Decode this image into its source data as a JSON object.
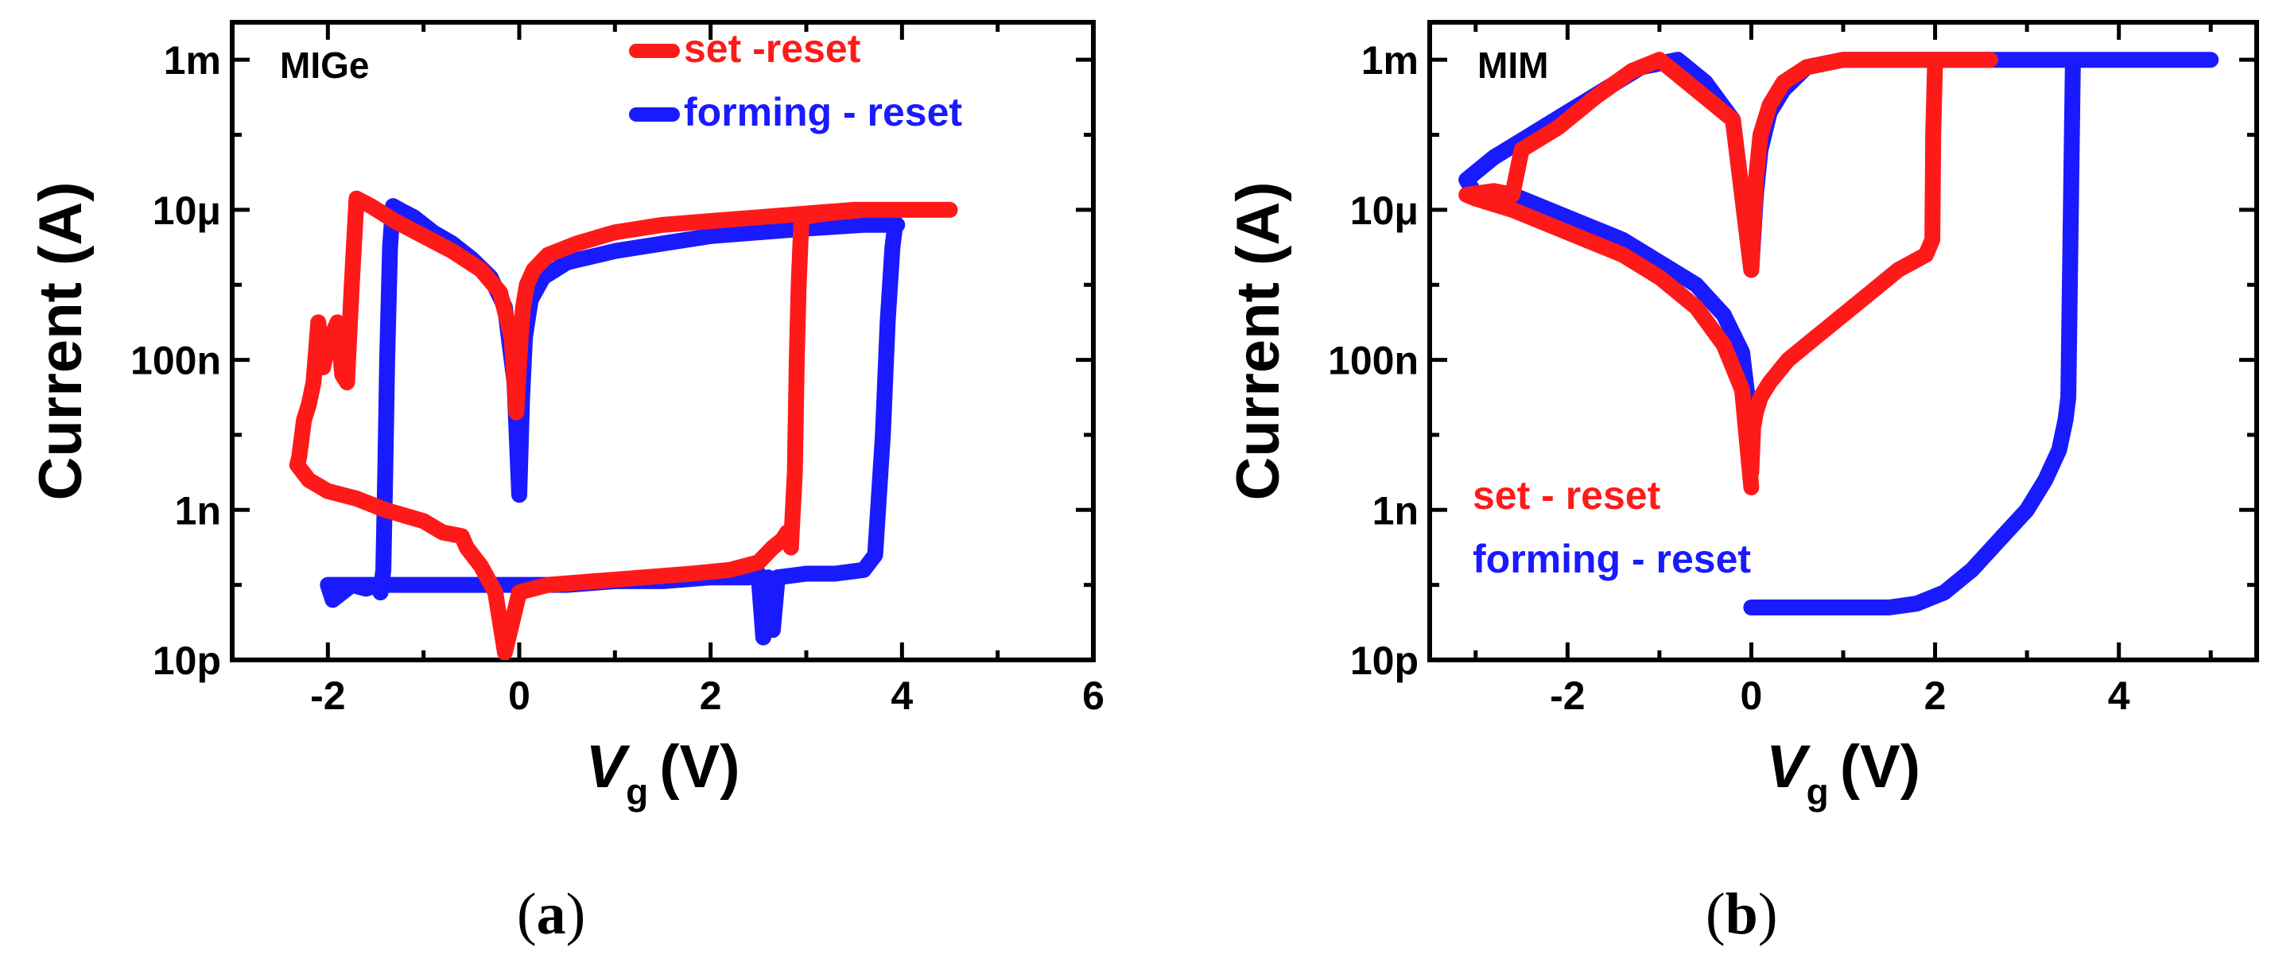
{
  "chart_data": [
    {
      "type": "line",
      "panel_label": "a",
      "annotation": "MIGe",
      "xlabel": "V",
      "xlabel_subscript": "g",
      "xlabel_unit": "(V)",
      "ylabel": "Current (A)",
      "yscale": "log",
      "xlim": [
        -3.0,
        6.0
      ],
      "ylim": [
        -11,
        -2.5
      ],
      "xticks": [
        -2,
        0,
        2,
        4,
        6
      ],
      "xtick_labels": [
        "-2",
        "0",
        "2",
        "4",
        "6"
      ],
      "yticks": [
        -11,
        -9,
        -7,
        -5,
        -3
      ],
      "ytick_labels": [
        "10p",
        "1n",
        "100n",
        "10μ",
        "1m"
      ],
      "legend_position": "top-right",
      "series": [
        {
          "name": "forming - reset",
          "color": "#1a1aff",
          "x": [
            0.05,
            0.5,
            1.0,
            1.5,
            2.0,
            2.4,
            2.5,
            2.55,
            2.6,
            2.65,
            2.7,
            3.0,
            3.3,
            3.6,
            3.72,
            3.8,
            3.85,
            3.9,
            3.93,
            3.95,
            3.6,
            3.0,
            2.5,
            2.0,
            1.5,
            1.0,
            0.5,
            0.25,
            0.12,
            0.06,
            0.03,
            0.0,
            -0.05,
            -0.15,
            -0.3,
            -0.5,
            -0.7,
            -0.9,
            -1.1,
            -1.25,
            -1.32,
            -1.35,
            -1.38,
            -1.4,
            -1.42,
            -1.45,
            -1.5,
            -1.6,
            -1.75,
            -1.85,
            -1.95,
            -2.0,
            -1.9,
            -1.6,
            -1.2,
            -0.8,
            -0.4,
            -0.1,
            0.0,
            0.03,
            0.05
          ],
          "log10_y": [
            -10.0,
            -10.0,
            -9.95,
            -9.95,
            -9.9,
            -9.9,
            -9.85,
            -10.7,
            -9.9,
            -10.6,
            -9.9,
            -9.85,
            -9.85,
            -9.8,
            -9.6,
            -8.0,
            -6.5,
            -5.5,
            -5.2,
            -5.2,
            -5.2,
            -5.25,
            -5.3,
            -5.35,
            -5.45,
            -5.55,
            -5.7,
            -5.9,
            -6.2,
            -6.7,
            -7.5,
            -8.8,
            -7.3,
            -6.3,
            -5.9,
            -5.65,
            -5.45,
            -5.3,
            -5.1,
            -5.0,
            -4.95,
            -5.5,
            -7.0,
            -8.5,
            -9.8,
            -10.1,
            -10.0,
            -10.05,
            -10.0,
            -10.1,
            -10.2,
            -10.0,
            -10.0,
            -10.0,
            -10.0,
            -10.0,
            -10.0,
            -10.0,
            -10.0,
            -10.0,
            -10.0
          ]
        },
        {
          "name": "set -reset",
          "color": "#ff1a1a",
          "x": [
            -0.15,
            0.0,
            0.3,
            0.8,
            1.3,
            1.8,
            2.2,
            2.5,
            2.65,
            2.75,
            2.8,
            2.84,
            2.88,
            2.9,
            2.92,
            2.95,
            3.2,
            3.6,
            4.0,
            4.5,
            4.0,
            3.5,
            3.0,
            2.5,
            2.0,
            1.5,
            1.0,
            0.6,
            0.3,
            0.15,
            0.08,
            0.04,
            0.02,
            0.0,
            -0.03,
            -0.08,
            -0.2,
            -0.4,
            -0.7,
            -1.0,
            -1.3,
            -1.55,
            -1.7,
            -1.75,
            -1.8,
            -1.85,
            -1.9,
            -2.0,
            -2.05,
            -2.1,
            -2.15,
            -2.2,
            -2.25,
            -2.3,
            -2.32,
            -2.2,
            -2.0,
            -1.7,
            -1.4,
            -1.0,
            -0.8,
            -0.6,
            -0.55,
            -0.4,
            -0.25,
            -0.15
          ],
          "log10_y": [
            -10.9,
            -10.1,
            -10.0,
            -9.95,
            -9.9,
            -9.85,
            -9.8,
            -9.7,
            -9.5,
            -9.4,
            -9.3,
            -9.5,
            -8.5,
            -7.0,
            -6.0,
            -5.1,
            -5.05,
            -5.0,
            -5.0,
            -5.0,
            -5.0,
            -5.0,
            -5.05,
            -5.1,
            -5.15,
            -5.2,
            -5.3,
            -5.45,
            -5.6,
            -5.8,
            -6.0,
            -6.3,
            -6.6,
            -7.0,
            -7.7,
            -6.7,
            -6.1,
            -5.8,
            -5.55,
            -5.35,
            -5.15,
            -4.95,
            -4.85,
            -6.0,
            -7.3,
            -7.2,
            -6.5,
            -6.8,
            -7.1,
            -6.5,
            -7.3,
            -7.6,
            -7.8,
            -8.3,
            -8.4,
            -8.6,
            -8.75,
            -8.85,
            -9.0,
            -9.15,
            -9.3,
            -9.35,
            -9.5,
            -9.75,
            -10.1,
            -10.9
          ]
        }
      ]
    },
    {
      "type": "line",
      "panel_label": "b",
      "annotation": "MIM",
      "xlabel": "V",
      "xlabel_subscript": "g",
      "xlabel_unit": "(V)",
      "ylabel": "Current (A)",
      "yscale": "log",
      "xlim": [
        -3.5,
        5.5
      ],
      "ylim": [
        -11,
        -2.5
      ],
      "xticks": [
        -2,
        0,
        2,
        4
      ],
      "xtick_labels": [
        "-2",
        "0",
        "2",
        "4"
      ],
      "yticks": [
        -11,
        -9,
        -7,
        -5,
        -3
      ],
      "ytick_labels": [
        "10p",
        "1n",
        "100n",
        "10μ",
        "1m"
      ],
      "legend_position": "bottom-left",
      "series": [
        {
          "name": "forming - reset",
          "color": "#1a1aff",
          "x": [
            0.0,
            0.5,
            1.0,
            1.5,
            1.8,
            2.1,
            2.4,
            2.7,
            3.0,
            3.2,
            3.35,
            3.42,
            3.45,
            3.5,
            3.6,
            4.0,
            4.5,
            5.0,
            4.5,
            4.0,
            3.0,
            2.5,
            2.0,
            1.5,
            1.0,
            0.6,
            0.35,
            0.2,
            0.1,
            0.05,
            0.0,
            -0.2,
            -0.5,
            -0.8,
            -1.2,
            -1.6,
            -2.0,
            -2.4,
            -2.8,
            -3.1,
            -3.0,
            -2.6,
            -2.2,
            -1.8,
            -1.4,
            -1.0,
            -0.6,
            -0.3,
            -0.1,
            0.0
          ],
          "log10_y": [
            -10.3,
            -10.3,
            -10.3,
            -10.3,
            -10.25,
            -10.1,
            -9.8,
            -9.4,
            -9.0,
            -8.6,
            -8.2,
            -7.8,
            -7.5,
            -3.0,
            -3.0,
            -3.0,
            -3.0,
            -3.0,
            -3.0,
            -3.0,
            -3.0,
            -3.0,
            -3.0,
            -3.0,
            -3.0,
            -3.1,
            -3.4,
            -3.7,
            -4.2,
            -4.8,
            -5.8,
            -3.8,
            -3.3,
            -3.0,
            -3.1,
            -3.4,
            -3.7,
            -4.0,
            -4.3,
            -4.6,
            -4.8,
            -4.8,
            -5.0,
            -5.2,
            -5.4,
            -5.7,
            -6.0,
            -6.4,
            -6.9,
            -7.9
          ]
        },
        {
          "name": "set - reset",
          "color": "#ff1a1a",
          "x": [
            0.0,
            0.02,
            0.05,
            0.1,
            0.2,
            0.4,
            0.7,
            1.0,
            1.3,
            1.6,
            1.9,
            1.97,
            1.98,
            2.0,
            2.3,
            2.6,
            2.4,
            2.0,
            1.5,
            1.0,
            0.6,
            0.35,
            0.2,
            0.1,
            0.05,
            0.0,
            -0.2,
            -0.5,
            -0.8,
            -1.0,
            -1.3,
            -1.7,
            -2.1,
            -2.5,
            -2.6,
            -2.8,
            -3.1,
            -3.0,
            -2.6,
            -2.2,
            -1.8,
            -1.4,
            -1.0,
            -0.6,
            -0.3,
            -0.1,
            0.0
          ],
          "log10_y": [
            -8.5,
            -7.9,
            -7.7,
            -7.5,
            -7.3,
            -7.0,
            -6.7,
            -6.4,
            -6.1,
            -5.8,
            -5.6,
            -5.4,
            -4.0,
            -3.0,
            -3.0,
            -3.0,
            -3.0,
            -3.0,
            -3.0,
            -3.0,
            -3.1,
            -3.3,
            -3.6,
            -4.0,
            -4.6,
            -5.8,
            -3.8,
            -3.5,
            -3.2,
            -3.0,
            -3.15,
            -3.5,
            -3.9,
            -4.2,
            -4.8,
            -4.75,
            -4.8,
            -4.85,
            -5.0,
            -5.2,
            -5.4,
            -5.6,
            -5.9,
            -6.3,
            -6.8,
            -7.4,
            -8.7
          ]
        }
      ]
    }
  ]
}
